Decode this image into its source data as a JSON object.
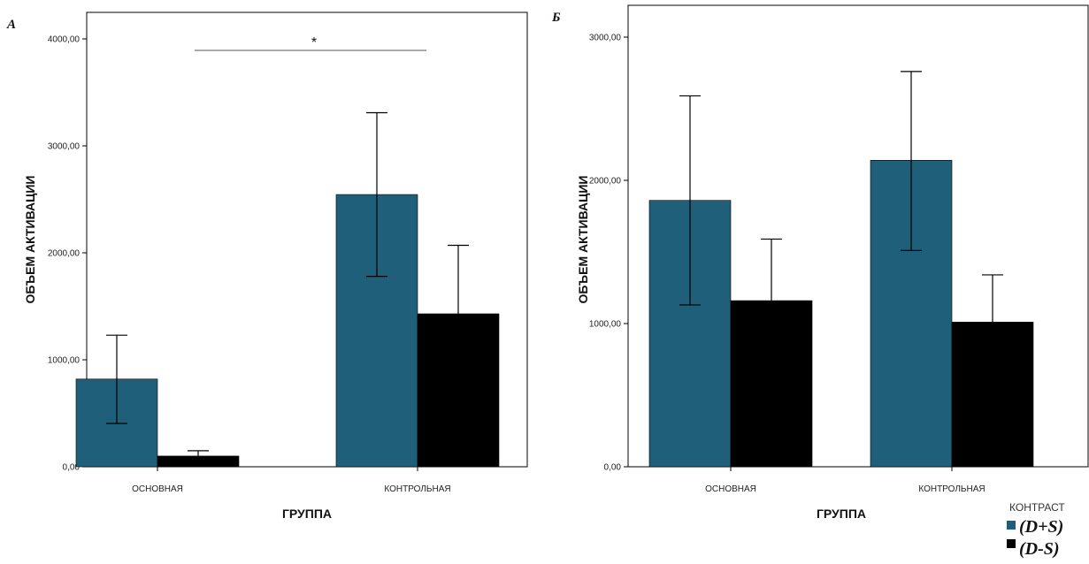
{
  "chart_data": [
    {
      "type": "bar",
      "panel": "A",
      "categories": [
        "ОСНОВНАЯ",
        "КОНТРОЛЬНАЯ"
      ],
      "series": [
        {
          "name": "(D+S)",
          "color": "#1f5f7a",
          "values": [
            820,
            2545
          ],
          "error_upper": [
            1230,
            3310
          ],
          "error_lower": [
            405,
            1780
          ]
        },
        {
          "name": "(D-S)",
          "color": "#000000",
          "values": [
            100,
            1430
          ],
          "error_upper": [
            150,
            2070
          ],
          "error_lower": [
            null,
            null
          ]
        }
      ],
      "xlabel": "ГРУППА",
      "ylabel": "ОБЪЕМ АКТИВАЦИИ",
      "ylim": [
        0,
        4000
      ],
      "yticks": [
        0,
        1000,
        2000,
        3000,
        4000
      ],
      "ytick_labels": [
        "0,00",
        "1000,00",
        "2000,00",
        "3000,00",
        "4000,00"
      ],
      "significance": {
        "label": "*",
        "between": [
          "ОСНОВНАЯ",
          "КОНТРОЛЬНАЯ"
        ],
        "level": 3950
      }
    },
    {
      "type": "bar",
      "panel": "Б",
      "categories": [
        "ОСНОВНАЯ",
        "КОНТРОЛЬНАЯ"
      ],
      "series": [
        {
          "name": "(D+S)",
          "color": "#1f5f7a",
          "values": [
            1860,
            2140
          ],
          "error_upper": [
            2590,
            2760
          ],
          "error_lower": [
            1130,
            1510
          ]
        },
        {
          "name": "(D-S)",
          "color": "#000000",
          "values": [
            1160,
            1010
          ],
          "error_upper": [
            1590,
            1340
          ],
          "error_lower": [
            null,
            null
          ]
        }
      ],
      "xlabel": "ГРУППА",
      "ylabel": "ОБЪЕМ АКТИВАЦИИ",
      "ylim": [
        0,
        3000
      ],
      "yticks": [
        0,
        1000,
        2000,
        3000
      ],
      "ytick_labels": [
        "0,00",
        "1000,00",
        "2000,00",
        "3000,00"
      ]
    }
  ],
  "legend": {
    "title": "КОНТРАСТ",
    "placement": "bottom-right",
    "entries": [
      {
        "label": "(D+S)",
        "color": "#1f5f7a"
      },
      {
        "label": "(D-S)",
        "color": "#000000"
      }
    ]
  }
}
